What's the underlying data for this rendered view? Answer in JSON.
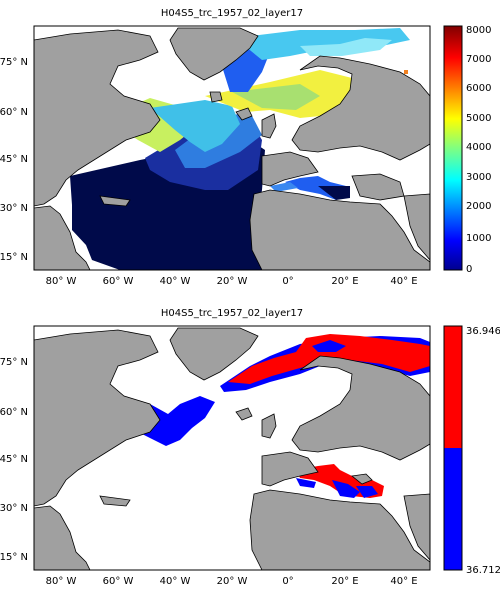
{
  "panels": [
    {
      "title": "H04S5_trc_1957_02_layer17",
      "lat_labels": [
        "75° N",
        "60° N",
        "45° N",
        "30° N",
        "15° N"
      ],
      "lon_labels": [
        "80° W",
        "60° W",
        "40° W",
        "20° W",
        "0°",
        "20° E",
        "40° E"
      ],
      "colorbar": {
        "type": "continuous",
        "ticks": [
          "8000",
          "7000",
          "6000",
          "5000",
          "4000",
          "3000",
          "2000",
          "1000",
          "0"
        ],
        "min": 0,
        "max": 8000,
        "colormap": "jet"
      }
    },
    {
      "title": "H04S5_trc_1957_02_layer17",
      "lat_labels": [
        "75° N",
        "60° N",
        "45° N",
        "30° N",
        "15° N"
      ],
      "lon_labels": [
        "80° W",
        "60° W",
        "40° W",
        "20° W",
        "0°",
        "20° E",
        "40° E"
      ],
      "colorbar": {
        "type": "binary",
        "top_label": "36.946",
        "bottom_label": "36.712",
        "colors": [
          "#ff0000",
          "#0000ff"
        ]
      }
    }
  ],
  "colors": {
    "land": "#a0a0a0",
    "ocean_missing": "#ffffff",
    "deep_low": "#000a4a"
  }
}
